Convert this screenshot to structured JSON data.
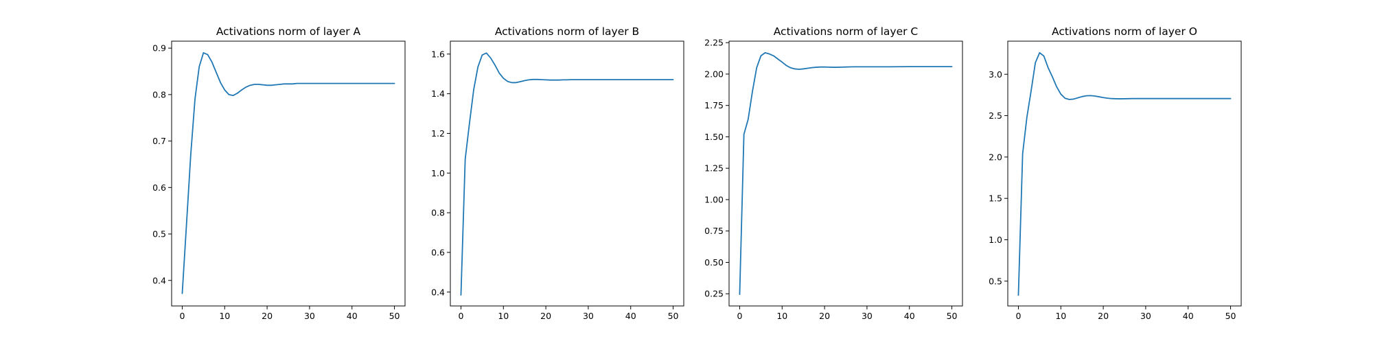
{
  "chart_data": [
    {
      "type": "line",
      "title": "Activations norm of layer A",
      "xlabel": "",
      "ylabel": "",
      "xlim": [
        -2.5,
        52.5
      ],
      "ylim": [
        0.345,
        0.915
      ],
      "xticks": [
        0,
        10,
        20,
        30,
        40,
        50
      ],
      "yticks": [
        0.4,
        0.5,
        0.6,
        0.7,
        0.8,
        0.9
      ],
      "ytick_labels": [
        "0.4",
        "0.5",
        "0.6",
        "0.7",
        "0.8",
        "0.9"
      ],
      "grid": false,
      "color": "#1f77b4",
      "x": [
        0,
        1,
        2,
        3,
        4,
        5,
        6,
        7,
        8,
        9,
        10,
        11,
        12,
        13,
        14,
        15,
        16,
        17,
        18,
        19,
        20,
        21,
        22,
        23,
        24,
        25,
        26,
        27,
        28,
        29,
        30,
        35,
        40,
        45,
        50
      ],
      "y": [
        0.372,
        0.52,
        0.67,
        0.79,
        0.86,
        0.89,
        0.886,
        0.87,
        0.848,
        0.826,
        0.81,
        0.8,
        0.798,
        0.803,
        0.81,
        0.816,
        0.82,
        0.822,
        0.822,
        0.821,
        0.82,
        0.82,
        0.821,
        0.822,
        0.823,
        0.823,
        0.823,
        0.824,
        0.824,
        0.824,
        0.824,
        0.824,
        0.824,
        0.824,
        0.824
      ]
    },
    {
      "type": "line",
      "title": "Activations norm of layer B",
      "xlabel": "",
      "ylabel": "",
      "xlim": [
        -2.5,
        52.5
      ],
      "ylim": [
        0.33,
        1.665
      ],
      "xticks": [
        0,
        10,
        20,
        30,
        40,
        50
      ],
      "yticks": [
        0.4,
        0.6,
        0.8,
        1.0,
        1.2,
        1.4,
        1.6
      ],
      "ytick_labels": [
        "0.4",
        "0.6",
        "0.8",
        "1.0",
        "1.2",
        "1.4",
        "1.6"
      ],
      "grid": false,
      "color": "#1f77b4",
      "x": [
        0,
        1,
        2,
        3,
        4,
        5,
        6,
        7,
        8,
        9,
        10,
        11,
        12,
        13,
        14,
        15,
        16,
        17,
        18,
        19,
        20,
        21,
        22,
        23,
        24,
        25,
        26,
        27,
        28,
        29,
        30,
        35,
        40,
        45,
        50
      ],
      "y": [
        0.385,
        1.07,
        1.25,
        1.42,
        1.535,
        1.595,
        1.605,
        1.58,
        1.545,
        1.505,
        1.478,
        1.462,
        1.456,
        1.456,
        1.461,
        1.466,
        1.47,
        1.472,
        1.472,
        1.471,
        1.47,
        1.469,
        1.469,
        1.469,
        1.47,
        1.47,
        1.471,
        1.471,
        1.471,
        1.471,
        1.471,
        1.471,
        1.471,
        1.471,
        1.471
      ]
    },
    {
      "type": "line",
      "title": "Activations norm of layer C",
      "xlabel": "",
      "ylabel": "",
      "xlim": [
        -2.5,
        52.5
      ],
      "ylim": [
        0.153,
        2.262
      ],
      "xticks": [
        0,
        10,
        20,
        30,
        40,
        50
      ],
      "yticks": [
        0.25,
        0.5,
        0.75,
        1.0,
        1.25,
        1.5,
        1.75,
        2.0,
        2.25
      ],
      "ytick_labels": [
        "0.25",
        "0.50",
        "0.75",
        "1.00",
        "1.25",
        "1.50",
        "1.75",
        "2.00",
        "2.25"
      ],
      "grid": false,
      "color": "#1f77b4",
      "x": [
        0,
        1,
        2,
        3,
        4,
        5,
        6,
        7,
        8,
        9,
        10,
        11,
        12,
        13,
        14,
        15,
        16,
        17,
        18,
        19,
        20,
        21,
        22,
        23,
        24,
        25,
        26,
        27,
        28,
        29,
        30,
        35,
        40,
        45,
        50
      ],
      "y": [
        0.245,
        1.52,
        1.64,
        1.86,
        2.05,
        2.145,
        2.17,
        2.16,
        2.145,
        2.12,
        2.095,
        2.068,
        2.05,
        2.041,
        2.038,
        2.041,
        2.046,
        2.051,
        2.054,
        2.056,
        2.056,
        2.055,
        2.054,
        2.054,
        2.055,
        2.056,
        2.057,
        2.058,
        2.058,
        2.058,
        2.058,
        2.058,
        2.059,
        2.059,
        2.059
      ]
    },
    {
      "type": "line",
      "title": "Activations norm of layer O",
      "xlabel": "",
      "ylabel": "",
      "xlim": [
        -2.5,
        52.5
      ],
      "ylim": [
        0.2,
        3.4
      ],
      "xticks": [
        0,
        10,
        20,
        30,
        40,
        50
      ],
      "yticks": [
        0.5,
        1.0,
        1.5,
        2.0,
        2.5,
        3.0
      ],
      "ytick_labels": [
        "0.5",
        "1.0",
        "1.5",
        "2.0",
        "2.5",
        "3.0"
      ],
      "grid": false,
      "color": "#1f77b4",
      "x": [
        0,
        1,
        2,
        3,
        4,
        5,
        6,
        7,
        8,
        9,
        10,
        11,
        12,
        13,
        14,
        15,
        16,
        17,
        18,
        19,
        20,
        21,
        22,
        23,
        24,
        25,
        26,
        27,
        28,
        29,
        30,
        35,
        40,
        45,
        50
      ],
      "y": [
        0.33,
        2.04,
        2.48,
        2.8,
        3.14,
        3.26,
        3.22,
        3.08,
        2.97,
        2.85,
        2.76,
        2.71,
        2.695,
        2.7,
        2.715,
        2.73,
        2.74,
        2.742,
        2.737,
        2.728,
        2.718,
        2.711,
        2.706,
        2.704,
        2.703,
        2.704,
        2.705,
        2.706,
        2.706,
        2.706,
        2.706,
        2.706,
        2.706,
        2.706,
        2.706
      ]
    }
  ]
}
